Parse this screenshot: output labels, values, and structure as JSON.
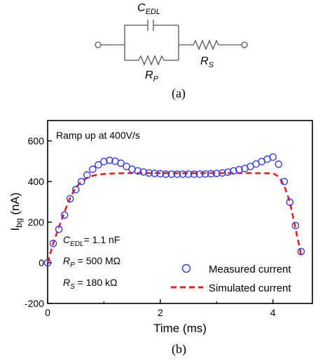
{
  "circuit": {
    "cap_label_main": "C",
    "cap_label_sub": "EDL",
    "rp_label_main": "R",
    "rp_label_sub": "P",
    "rs_label_main": "R",
    "rs_label_sub": "S",
    "caption": "(a)"
  },
  "plot_caption": "(b)",
  "chart_data": {
    "type": "scatter",
    "annotation": "Ramp up at 400V/s",
    "xlabel": "Time (ms)",
    "ylabel_main": "I",
    "ylabel_sub": "bg",
    "ylabel_unit": " (nA)",
    "xlim": [
      0,
      4.7
    ],
    "ylim": [
      -200,
      700
    ],
    "xticks": [
      0,
      2,
      4
    ],
    "yticks": [
      -200,
      0,
      200,
      400,
      600
    ],
    "params": [
      {
        "sym": "C",
        "sub": "EDL",
        "text": "= 1.1 nF"
      },
      {
        "sym": "R",
        "sub": "P",
        "text": " = 500 MΩ"
      },
      {
        "sym": "R",
        "sub": "S",
        "text": " = 180 kΩ"
      }
    ],
    "legend_position": "bottom-right",
    "series": [
      {
        "name": "Measured current",
        "style": "open-circle",
        "color": "#3a3ae0",
        "x": [
          0.0,
          0.1,
          0.2,
          0.3,
          0.4,
          0.5,
          0.6,
          0.7,
          0.8,
          0.9,
          1.0,
          1.1,
          1.2,
          1.3,
          1.4,
          1.5,
          1.6,
          1.7,
          1.8,
          1.9,
          2.0,
          2.1,
          2.2,
          2.3,
          2.4,
          2.5,
          2.6,
          2.7,
          2.8,
          2.9,
          3.0,
          3.1,
          3.2,
          3.3,
          3.4,
          3.5,
          3.6,
          3.7,
          3.8,
          3.9,
          4.0,
          4.1,
          4.2,
          4.3,
          4.4,
          4.5
        ],
        "y": [
          0,
          95,
          165,
          235,
          315,
          360,
          400,
          432,
          460,
          482,
          498,
          504,
          500,
          490,
          474,
          460,
          452,
          447,
          442,
          440,
          438,
          436,
          436,
          436,
          436,
          436,
          436,
          436,
          437,
          438,
          440,
          442,
          446,
          452,
          458,
          464,
          474,
          486,
          498,
          510,
          520,
          485,
          400,
          298,
          183,
          55
        ]
      },
      {
        "name": "Simulated current",
        "style": "dashed-line",
        "color": "#dd2222",
        "x": [
          0.0,
          0.1,
          0.2,
          0.3,
          0.4,
          0.5,
          0.6,
          0.7,
          0.8,
          0.9,
          1.0,
          1.2,
          1.4,
          1.6,
          2.0,
          2.4,
          2.8,
          3.2,
          3.6,
          4.0,
          4.1,
          4.2,
          4.3,
          4.4,
          4.5
        ],
        "y": [
          0,
          95,
          175,
          250,
          320,
          370,
          400,
          418,
          428,
          434,
          437,
          440,
          441,
          441,
          441,
          441,
          441,
          441,
          441,
          440,
          425,
          380,
          300,
          170,
          40
        ]
      }
    ]
  }
}
